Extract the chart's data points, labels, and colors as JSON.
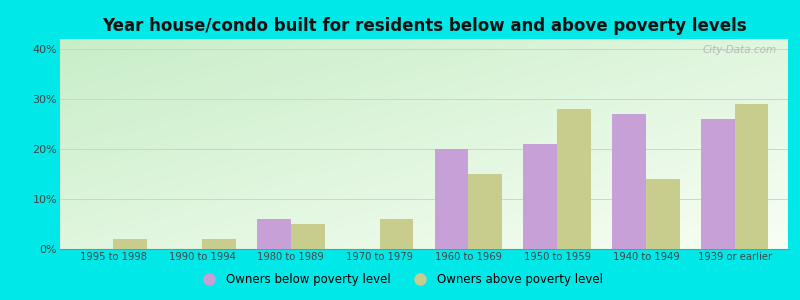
{
  "categories": [
    "1995 to 1998",
    "1990 to 1994",
    "1980 to 1989",
    "1970 to 1979",
    "1960 to 1969",
    "1950 to 1959",
    "1940 to 1949",
    "1939 or earlier"
  ],
  "below_poverty": [
    0.0,
    0.0,
    6.0,
    0.0,
    20.0,
    21.0,
    27.0,
    26.0
  ],
  "above_poverty": [
    2.0,
    2.0,
    5.0,
    6.0,
    15.0,
    28.0,
    14.0,
    29.0
  ],
  "below_color": "#c8a0d8",
  "above_color": "#c8cc8c",
  "title": "Year house/condo built for residents below and above poverty levels",
  "title_fontsize": 12,
  "ylabel_ticks": [
    "0%",
    "10%",
    "20%",
    "30%",
    "40%"
  ],
  "ytick_vals": [
    0,
    10,
    20,
    30,
    40
  ],
  "ylim": [
    0,
    42
  ],
  "border_color": "#00e8e8",
  "legend_below": "Owners below poverty level",
  "legend_above": "Owners above poverty level",
  "watermark": "City-Data.com",
  "grad_top_left": "#c8eec8",
  "grad_bottom_right": "#f8fef4"
}
